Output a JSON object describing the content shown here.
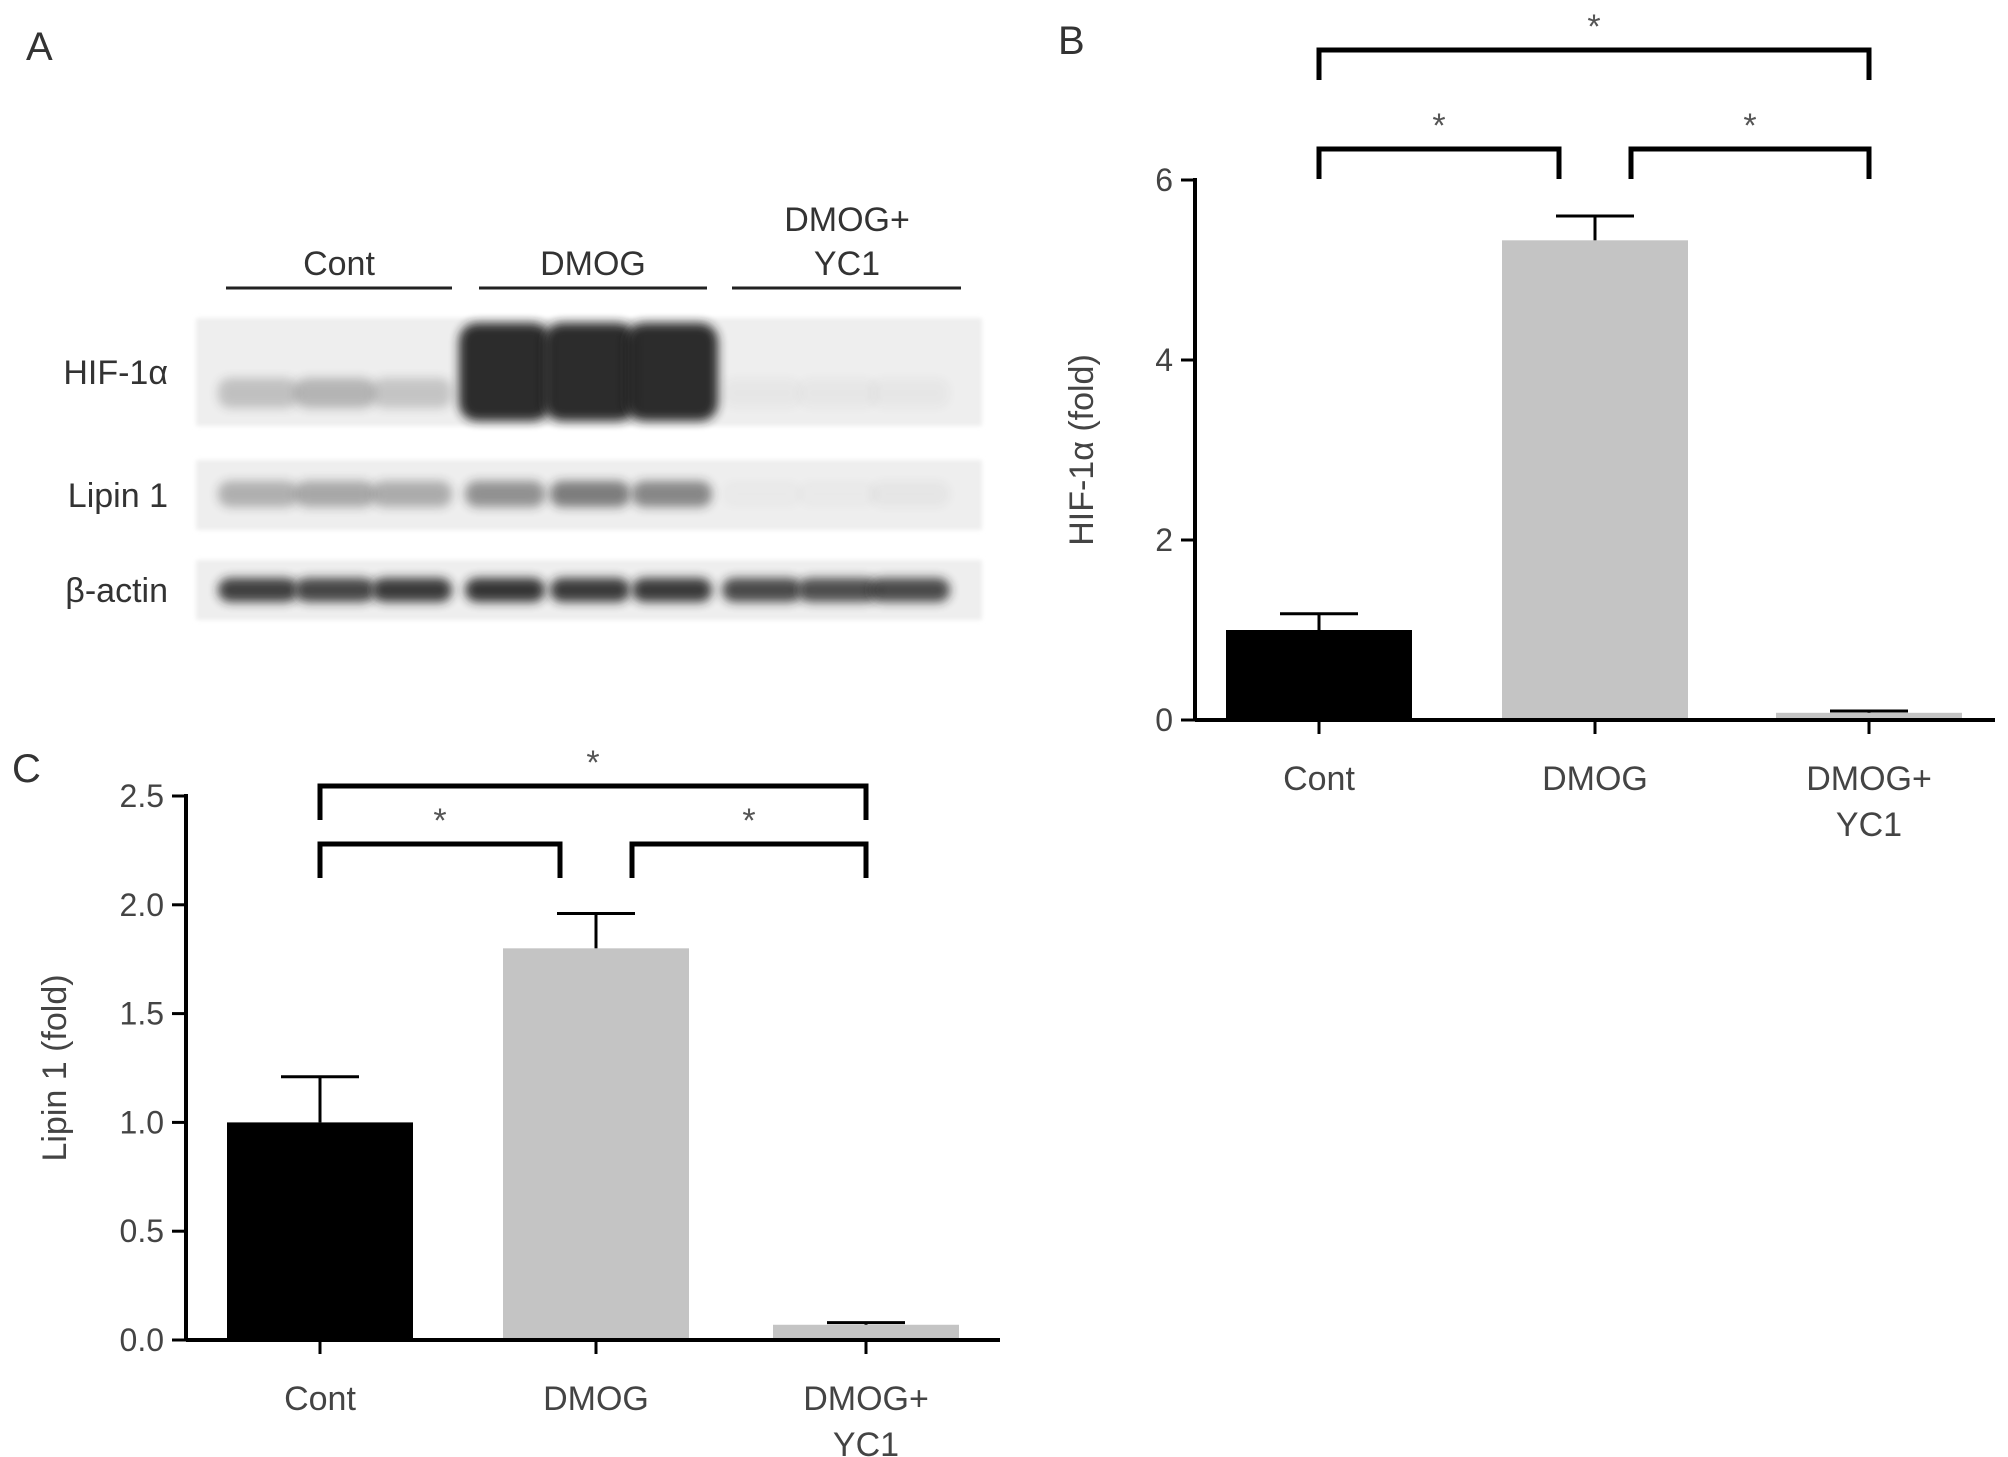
{
  "panels": {
    "a": "A",
    "b": "B",
    "c": "C"
  },
  "blot": {
    "groups": [
      {
        "lines": [
          "Cont"
        ]
      },
      {
        "lines": [
          "DMOG"
        ]
      },
      {
        "lines": [
          "DMOG+",
          "YC1"
        ]
      }
    ],
    "rows": [
      {
        "label": "HIF-1α",
        "intensity": [
          0.22,
          0.28,
          0.2,
          0.95,
          0.95,
          0.95,
          0.03,
          0.03,
          0.03
        ]
      },
      {
        "label": "Lipin 1",
        "intensity": [
          0.3,
          0.34,
          0.32,
          0.45,
          0.55,
          0.5,
          0.02,
          0.02,
          0.04
        ]
      },
      {
        "label": "β-actin",
        "intensity": [
          0.85,
          0.82,
          0.88,
          0.9,
          0.88,
          0.88,
          0.8,
          0.78,
          0.8
        ]
      }
    ],
    "colors": {
      "background": "#eeeeee",
      "band": "#222222"
    }
  },
  "chart_data": [
    {
      "type": "bar",
      "panel": "B",
      "categories": [
        [
          "Cont"
        ],
        [
          "DMOG"
        ],
        [
          "DMOG+",
          "YC1"
        ]
      ],
      "values": [
        1.0,
        5.33,
        0.08
      ],
      "errors": [
        0.18,
        0.27,
        0.02
      ],
      "colors": [
        "#000000",
        "#c4c4c4",
        "#c4c4c4"
      ],
      "ylabel": "HIF-1α (fold)",
      "ylim": [
        0,
        6
      ],
      "yticks": [
        0,
        2,
        4,
        6
      ],
      "significance": [
        {
          "from": 0,
          "to": 1,
          "label": "*"
        },
        {
          "from": 1,
          "to": 2,
          "label": "*"
        },
        {
          "from": 0,
          "to": 2,
          "label": "*"
        }
      ]
    },
    {
      "type": "bar",
      "panel": "C",
      "categories": [
        [
          "Cont"
        ],
        [
          "DMOG"
        ],
        [
          "DMOG+",
          "YC1"
        ]
      ],
      "values": [
        1.0,
        1.8,
        0.07
      ],
      "errors": [
        0.21,
        0.16,
        0.01
      ],
      "colors": [
        "#000000",
        "#c4c4c4",
        "#c4c4c4"
      ],
      "ylabel": "Lipin 1 (fold)",
      "ylim": [
        0,
        2.5
      ],
      "yticks": [
        "0.0",
        "0.5",
        "1.0",
        "1.5",
        "2.0",
        "2.5"
      ],
      "significance": [
        {
          "from": 0,
          "to": 1,
          "label": "*"
        },
        {
          "from": 1,
          "to": 2,
          "label": "*"
        },
        {
          "from": 0,
          "to": 2,
          "label": "*"
        }
      ]
    }
  ]
}
